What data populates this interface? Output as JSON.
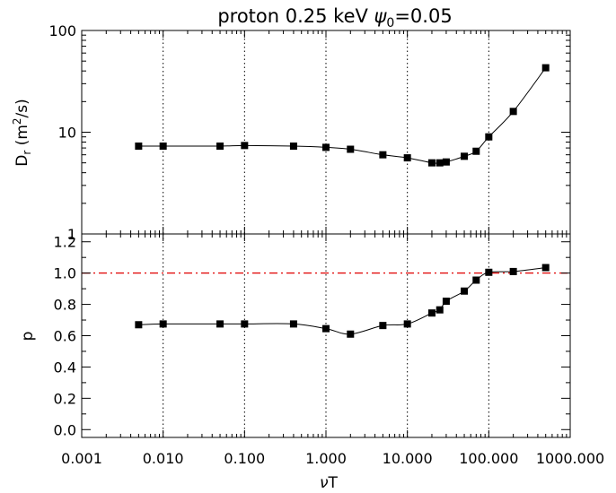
{
  "chart_data": [
    {
      "type": "line",
      "title": "proton 0.25 keV ψ₀=0.05",
      "title_parts": {
        "prefix": "proton 0.25 keV ",
        "symbol": "ψ",
        "subscript": "0",
        "suffix": "=0.05"
      },
      "ylabel": "Dᵣ (m²/s)",
      "ylabel_parts": {
        "main": "D",
        "sub": "r",
        "mid": " (m",
        "sup": "2",
        "end": "/s)"
      },
      "yscale": "log",
      "ylim": [
        1,
        100
      ],
      "ytick_values": [
        1,
        10,
        100
      ],
      "ytick_labels": [
        "1",
        "10",
        "100"
      ],
      "xscale": "log",
      "xlim": [
        0.001,
        1000
      ],
      "vgrid": [
        0.01,
        0.1,
        1,
        10,
        100
      ],
      "grid_style": "dotted",
      "color": "#000000",
      "series": [
        {
          "marker": "square",
          "x": [
            0.005,
            0.01,
            0.05,
            0.1,
            0.4,
            1,
            2,
            5,
            10,
            20,
            25,
            30,
            50,
            70,
            100,
            200,
            500
          ],
          "y": [
            7.3,
            7.3,
            7.3,
            7.4,
            7.3,
            7.1,
            6.8,
            6.0,
            5.6,
            5.0,
            5.0,
            5.1,
            5.8,
            6.5,
            9.0,
            16.0,
            43.0
          ]
        }
      ]
    },
    {
      "type": "line",
      "ylabel": "p",
      "xlabel": "νT",
      "xlabel_parts": {
        "symbol": "ν",
        "rest": "T"
      },
      "yscale": "linear",
      "ylim": [
        -0.05,
        1.25
      ],
      "ytick_values": [
        0.0,
        0.2,
        0.4,
        0.6,
        0.8,
        1.0,
        1.2
      ],
      "ytick_labels": [
        "0.0",
        "0.2",
        "0.4",
        "0.6",
        "0.8",
        "1.0",
        "1.2"
      ],
      "xscale": "log",
      "xlim": [
        0.001,
        1000
      ],
      "xtick_values": [
        0.001,
        0.01,
        0.1,
        1,
        10,
        100,
        1000
      ],
      "xtick_labels": [
        "0.001",
        "0.010",
        "0.100",
        "1.000",
        "10.000",
        "100.000",
        "1000.000"
      ],
      "vgrid": [
        0.01,
        0.1,
        1,
        10,
        100
      ],
      "grid_style": "dotted",
      "reference_line": {
        "y": 1.0,
        "style": "dash-dot",
        "color": "#e00000"
      },
      "color": "#000000",
      "series": [
        {
          "marker": "square",
          "x": [
            0.005,
            0.01,
            0.05,
            0.1,
            0.4,
            1,
            2,
            5,
            10,
            20,
            25,
            30,
            50,
            70,
            100,
            200,
            500
          ],
          "y": [
            0.67,
            0.675,
            0.675,
            0.675,
            0.675,
            0.645,
            0.61,
            0.665,
            0.675,
            0.745,
            0.765,
            0.82,
            0.885,
            0.955,
            1.005,
            1.01,
            1.035
          ]
        }
      ]
    }
  ]
}
